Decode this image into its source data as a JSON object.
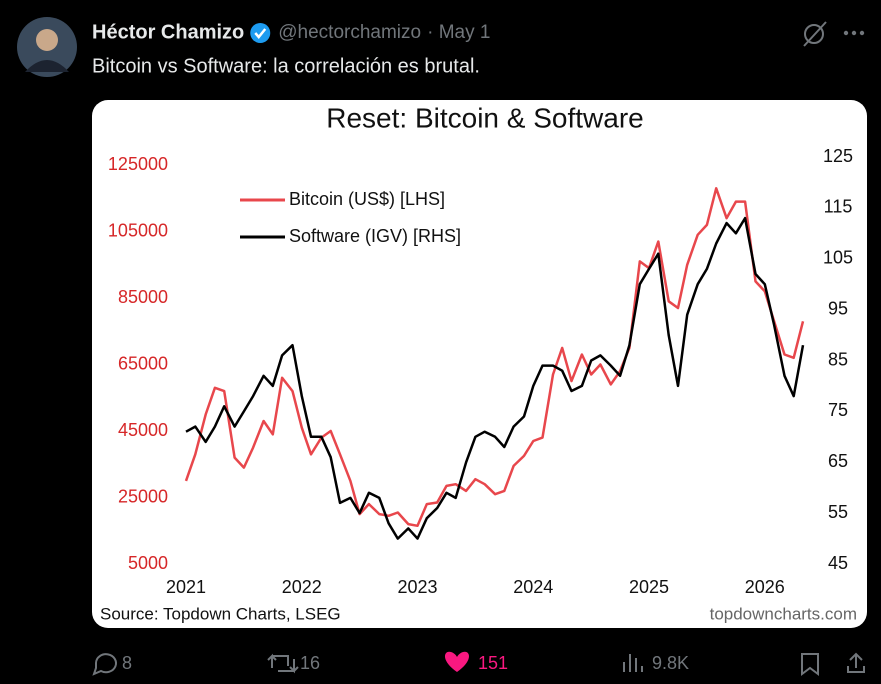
{
  "tweet": {
    "author": "Héctor Chamizo",
    "handle": "@hectorchamizo",
    "date": "· May 1",
    "text": "Bitcoin vs Software: la correlación es brutal.",
    "replies": "8",
    "reposts": "16",
    "likes": "151",
    "views": "9.8K"
  },
  "chart_data": {
    "type": "line",
    "title": "Reset: Bitcoin & Software",
    "source": "Source: Topdown Charts, LSEG",
    "watermark": "topdowncharts.com",
    "x": [
      2021.0,
      2021.08,
      2021.17,
      2021.25,
      2021.33,
      2021.42,
      2021.5,
      2021.58,
      2021.67,
      2021.75,
      2021.83,
      2021.92,
      2022.0,
      2022.08,
      2022.17,
      2022.25,
      2022.33,
      2022.42,
      2022.5,
      2022.58,
      2022.67,
      2022.75,
      2022.83,
      2022.92,
      2023.0,
      2023.08,
      2023.17,
      2023.25,
      2023.33,
      2023.42,
      2023.5,
      2023.58,
      2023.67,
      2023.75,
      2023.83,
      2023.92,
      2024.0,
      2024.08,
      2024.17,
      2024.25,
      2024.33,
      2024.42,
      2024.5,
      2024.58,
      2024.67,
      2024.75,
      2024.83,
      2024.92,
      2025.0,
      2025.08,
      2025.17,
      2025.25,
      2025.33,
      2025.42,
      2025.5,
      2025.58,
      2025.67,
      2025.75,
      2025.83,
      2025.92,
      2026.0,
      2026.08,
      2026.17,
      2026.25,
      2026.33
    ],
    "series": [
      {
        "name": "Bitcoin (US$) [LHS]",
        "color": "#e8474c",
        "axis": "y",
        "values": [
          30000,
          38000,
          50000,
          58000,
          57000,
          37000,
          34000,
          40000,
          48000,
          44000,
          61000,
          57000,
          46000,
          38000,
          43000,
          45000,
          38000,
          30000,
          20000,
          23000,
          20000,
          19500,
          20500,
          17000,
          16500,
          23000,
          23500,
          28500,
          29000,
          27000,
          30500,
          29000,
          26000,
          27000,
          34500,
          37500,
          42000,
          43000,
          62000,
          70000,
          60000,
          68000,
          62000,
          65000,
          59000,
          63000,
          70000,
          96000,
          94000,
          102000,
          84000,
          82000,
          95000,
          104000,
          107000,
          118000,
          109000,
          114000,
          114000,
          90000,
          87000,
          78000,
          68000,
          67000,
          78000
        ]
      },
      {
        "name": "Software (IGV) [RHS]",
        "color": "#000000",
        "axis": "y2",
        "values": [
          71,
          72,
          69,
          72,
          76,
          72,
          75,
          78,
          82,
          80,
          86,
          88,
          78,
          70,
          70,
          66,
          57,
          58,
          55,
          59,
          58,
          53,
          50,
          52,
          50,
          54,
          56,
          59,
          58,
          65,
          70,
          71,
          70,
          68,
          72,
          74,
          80,
          84,
          84,
          83,
          79,
          80,
          85,
          86,
          84,
          82,
          88,
          100,
          103,
          106,
          90,
          80,
          94,
          100,
          103,
          108,
          112,
          110,
          113,
          102,
          100,
          92,
          82,
          78,
          88
        ]
      }
    ],
    "xlim": [
      2021,
      2026.33
    ],
    "xticks": [
      2021,
      2022,
      2023,
      2024,
      2025,
      2026
    ],
    "ylim": [
      5000,
      125000
    ],
    "yticks": [
      5000,
      25000,
      45000,
      65000,
      85000,
      105000,
      125000
    ],
    "ytick_color": "#d62728",
    "y2lim": [
      45,
      125
    ],
    "y2ticks": [
      45,
      55,
      65,
      75,
      85,
      95,
      105,
      115,
      125
    ]
  }
}
